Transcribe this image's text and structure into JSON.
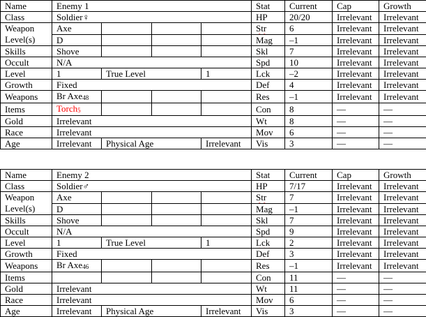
{
  "colors": {
    "item_highlight": "#ff0000",
    "spellcheck_underline": "#e03030"
  },
  "tables": [
    {
      "name_label": "Name",
      "name": "Enemy 1",
      "class_label": "Class",
      "class": "Soldier♀",
      "weapon_levels_label": "Weapon Level(s)",
      "weapon_level_1": "Axe",
      "weapon_level_2": "D",
      "skills_label": "Skills",
      "skill_1": "Shove",
      "occult_label": "Occult",
      "occult": "N/A",
      "level_label": "Level",
      "level": "1",
      "true_level_label": "True Level",
      "true_level": "1",
      "growth_label": "Growth",
      "growth": "Fixed",
      "weapons_label": "Weapons",
      "weapon_1": "Br Axe",
      "weapon_1_uses": "48",
      "items_label": "Items",
      "item_1": "Torch",
      "item_1_uses": "5",
      "item_1_red": true,
      "gold_label": "Gold",
      "gold": "Irrelevant",
      "race_label": "Race",
      "race": "Irrelevant",
      "age_label": "Age",
      "age": "Irrelevant",
      "physical_age_label": "Physical Age",
      "physical_age": "Irrelevant",
      "stat_headers": [
        "Stat",
        "Current",
        "Cap",
        "Growth"
      ],
      "stats": [
        {
          "stat": "HP",
          "current": "20/20",
          "cap": "Irrelevant",
          "growth": "Irrelevant",
          "spell": false
        },
        {
          "stat": "Str",
          "current": "6",
          "cap": "Irrelevant",
          "growth": "Irrelevant",
          "spell": true
        },
        {
          "stat": "Mag",
          "current": "–1",
          "cap": "Irrelevant",
          "growth": "Irrelevant",
          "spell": false
        },
        {
          "stat": "Skl",
          "current": "7",
          "cap": "Irrelevant",
          "growth": "Irrelevant",
          "spell": true
        },
        {
          "stat": "Spd",
          "current": "10",
          "cap": "Irrelevant",
          "growth": "Irrelevant",
          "spell": true
        },
        {
          "stat": "Lck",
          "current": "–2",
          "cap": "Irrelevant",
          "growth": "Irrelevant",
          "spell": true
        },
        {
          "stat": "Def",
          "current": "4",
          "cap": "Irrelevant",
          "growth": "Irrelevant",
          "spell": true
        },
        {
          "stat": "Res",
          "current": "–1",
          "cap": "Irrelevant",
          "growth": "Irrelevant",
          "spell": false
        },
        {
          "stat": "Con",
          "current": "8",
          "cap": "—",
          "growth": "—",
          "spell": false
        },
        {
          "stat": "Wt",
          "current": "8",
          "cap": "—",
          "growth": "—",
          "spell": true
        },
        {
          "stat": "Mov",
          "current": "6",
          "cap": "—",
          "growth": "—",
          "spell": true
        },
        {
          "stat": "Vis",
          "current": "3",
          "cap": "—",
          "growth": "—",
          "spell": false
        }
      ]
    },
    {
      "name_label": "Name",
      "name": "Enemy 2",
      "class_label": "Class",
      "class": "Soldier♂",
      "weapon_levels_label": "Weapon Level(s)",
      "weapon_level_1": "Axe",
      "weapon_level_2": "D",
      "skills_label": "Skills",
      "skill_1": "Shove",
      "occult_label": "Occult",
      "occult": "N/A",
      "level_label": "Level",
      "level": "1",
      "true_level_label": "True Level",
      "true_level": "1",
      "growth_label": "Growth",
      "growth": "Fixed",
      "weapons_label": "Weapons",
      "weapon_1": "Br Axe",
      "weapon_1_uses": "46",
      "items_label": "Items",
      "item_1": "",
      "item_1_uses": "",
      "item_1_red": false,
      "gold_label": "Gold",
      "gold": "Irrelevant",
      "race_label": "Race",
      "race": "Irrelevant",
      "age_label": "Age",
      "age": "Irrelevant",
      "physical_age_label": "Physical Age",
      "physical_age": "Irrelevant",
      "stat_headers": [
        "Stat",
        "Current",
        "Cap",
        "Growth"
      ],
      "stats": [
        {
          "stat": "HP",
          "current": "7/17",
          "cap": "Irrelevant",
          "growth": "Irrelevant",
          "spell": false
        },
        {
          "stat": "Str",
          "current": "7",
          "cap": "Irrelevant",
          "growth": "Irrelevant",
          "spell": true
        },
        {
          "stat": "Mag",
          "current": "–1",
          "cap": "Irrelevant",
          "growth": "Irrelevant",
          "spell": false
        },
        {
          "stat": "Skl",
          "current": "7",
          "cap": "Irrelevant",
          "growth": "Irrelevant",
          "spell": true
        },
        {
          "stat": "Spd",
          "current": "9",
          "cap": "Irrelevant",
          "growth": "Irrelevant",
          "spell": true
        },
        {
          "stat": "Lck",
          "current": "2",
          "cap": "Irrelevant",
          "growth": "Irrelevant",
          "spell": true
        },
        {
          "stat": "Def",
          "current": "3",
          "cap": "Irrelevant",
          "growth": "Irrelevant",
          "spell": true
        },
        {
          "stat": "Res",
          "current": "–1",
          "cap": "Irrelevant",
          "growth": "Irrelevant",
          "spell": false
        },
        {
          "stat": "Con",
          "current": "11",
          "cap": "—",
          "growth": "—",
          "spell": false
        },
        {
          "stat": "Wt",
          "current": "11",
          "cap": "—",
          "growth": "—",
          "spell": true
        },
        {
          "stat": "Mov",
          "current": "6",
          "cap": "—",
          "growth": "—",
          "spell": true
        },
        {
          "stat": "Vis",
          "current": "3",
          "cap": "—",
          "growth": "—",
          "spell": false
        }
      ]
    }
  ]
}
